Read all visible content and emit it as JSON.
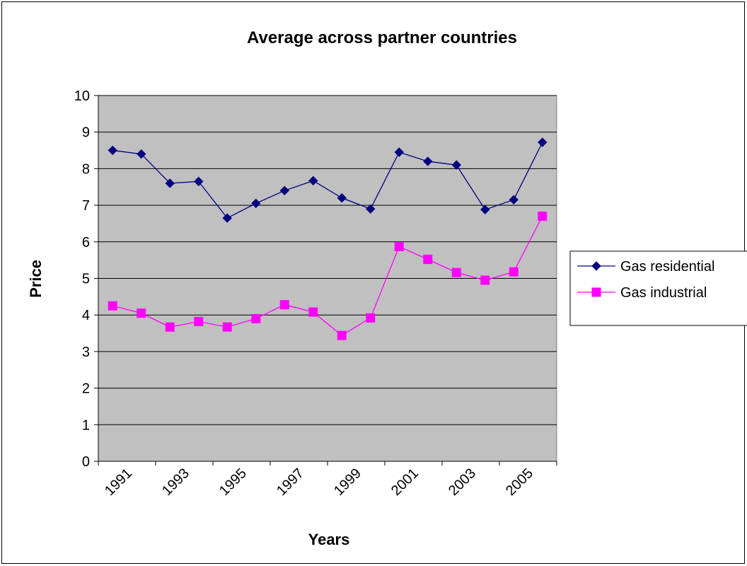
{
  "chart_data": {
    "type": "line",
    "title": "Average across partner countries",
    "xlabel": "Years",
    "ylabel": "Price",
    "ylim": [
      0,
      10
    ],
    "y_ticks": [
      "0",
      "1",
      "2",
      "3",
      "4",
      "5",
      "6",
      "7",
      "8",
      "9",
      "10"
    ],
    "x": [
      1991,
      1992,
      1993,
      1994,
      1995,
      1996,
      1997,
      1998,
      1999,
      2000,
      2001,
      2002,
      2003,
      2004,
      2005,
      2006
    ],
    "x_tick_labels": [
      "1991",
      "1993",
      "1995",
      "1997",
      "1999",
      "2001",
      "2003",
      "2005"
    ],
    "grid": true,
    "legend_position": "right",
    "plot_background": "#c0c0c0",
    "series": [
      {
        "name": "Gas residential",
        "color": "#000080",
        "marker": "diamond",
        "values": [
          8.5,
          8.4,
          7.6,
          7.65,
          6.65,
          7.05,
          7.4,
          7.67,
          7.2,
          6.9,
          8.45,
          8.2,
          8.1,
          6.88,
          7.15,
          8.72
        ]
      },
      {
        "name": "Gas industrial",
        "color": "#ff00ff",
        "marker": "square",
        "values": [
          4.25,
          4.05,
          3.67,
          3.82,
          3.67,
          3.9,
          4.28,
          4.08,
          3.44,
          3.92,
          5.87,
          5.52,
          5.16,
          4.95,
          5.18,
          6.7
        ]
      }
    ]
  }
}
